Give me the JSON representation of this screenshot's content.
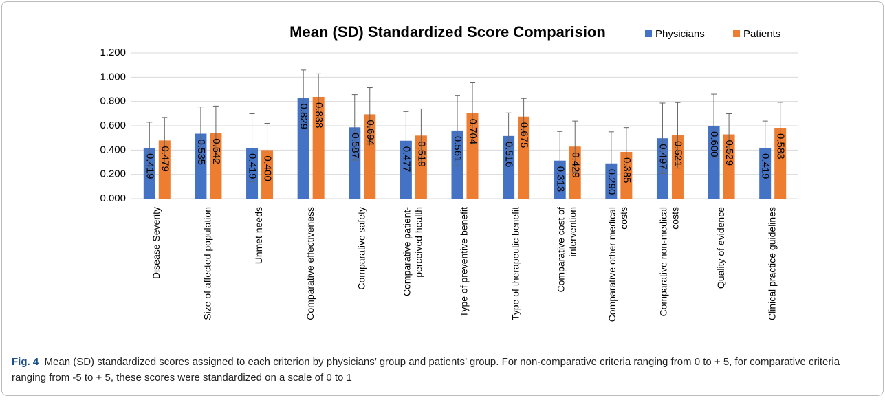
{
  "chart_data": {
    "type": "bar",
    "title": "Mean (SD) Standardized Score Comparision",
    "categories": [
      [
        "Disease Severity"
      ],
      [
        "Size of affected population"
      ],
      [
        "Unmet needs"
      ],
      [
        "Comparative effectiveness"
      ],
      [
        "Comparative safety"
      ],
      [
        "Comparative patient-",
        "perceived health"
      ],
      [
        "Type of preventive benefit"
      ],
      [
        "Type of therapeutic benefit"
      ],
      [
        "Comparative cost of",
        "intervention"
      ],
      [
        "Comparative other medical",
        "costs"
      ],
      [
        "Comparative non-medical",
        "costs"
      ],
      [
        "Quality of evidence"
      ],
      [
        "Clinical practice guidelines"
      ]
    ],
    "series": [
      {
        "name": "Physicians",
        "color": "#4472c4",
        "values": [
          0.419,
          0.535,
          0.419,
          0.829,
          0.587,
          0.477,
          0.561,
          0.516,
          0.313,
          0.29,
          0.497,
          0.6,
          0.419
        ],
        "value_labels": [
          "0.419",
          "0.535",
          "0.419",
          "0.829",
          "0.587",
          "0.477",
          "0.561",
          "0.516",
          "0.313",
          "0.290",
          "0.497",
          "0.600",
          "0.419"
        ],
        "errors": [
          0.21,
          0.22,
          0.28,
          0.23,
          0.27,
          0.24,
          0.29,
          0.19,
          0.24,
          0.26,
          0.29,
          0.26,
          0.22
        ]
      },
      {
        "name": "Patients",
        "color": "#ed7d31",
        "values": [
          0.479,
          0.542,
          0.4,
          0.838,
          0.694,
          0.519,
          0.704,
          0.675,
          0.429,
          0.385,
          0.521,
          0.529,
          0.583
        ],
        "value_labels": [
          "0.479",
          "0.542",
          "0.400",
          "0.838",
          "0.694",
          "0.519",
          "0.704",
          "0.675",
          "0.429",
          "0.385",
          "0.521",
          "0.529",
          "0.583"
        ],
        "errors": [
          0.19,
          0.22,
          0.22,
          0.19,
          0.22,
          0.22,
          0.25,
          0.15,
          0.21,
          0.2,
          0.27,
          0.17,
          0.21
        ]
      }
    ],
    "ylim": [
      0,
      1.2
    ],
    "yticks": [
      {
        "value": 0,
        "label": "0.000"
      },
      {
        "value": 0.2,
        "label": "0.200"
      },
      {
        "value": 0.4,
        "label": "0.400"
      },
      {
        "value": 0.6,
        "label": "0.600"
      },
      {
        "value": 0.8,
        "label": "0.800"
      },
      {
        "value": 1.0,
        "label": "1.000"
      },
      {
        "value": 1.2,
        "label": "1.200"
      }
    ],
    "grid": true,
    "legend": "top-right"
  },
  "caption": {
    "label": "Fig. 4",
    "text": "Mean (SD) standardized scores assigned to each criterion by physicians’ group and patients’ group. For non-comparative criteria ranging from 0 to + 5, for comparative criteria ranging from -5 to + 5, these scores were standardized on a scale of 0 to 1"
  }
}
